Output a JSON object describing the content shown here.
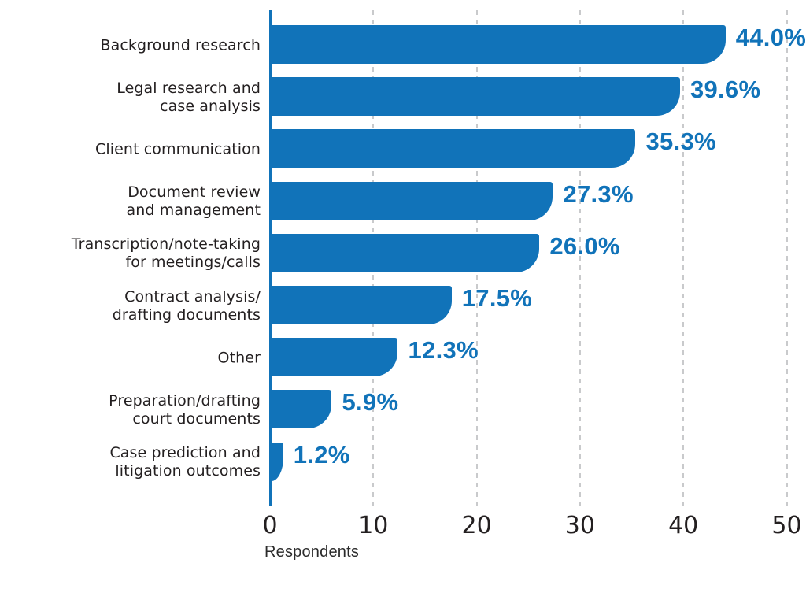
{
  "chart_data": {
    "type": "bar",
    "orientation": "horizontal",
    "title": "",
    "xlabel": "Respondents",
    "ylabel": "",
    "xlim": [
      0,
      50
    ],
    "x_ticks": [
      "0",
      "10",
      "20",
      "30",
      "40",
      "50"
    ],
    "grid": "vertical dashed gridlines at each tick",
    "legend": "none",
    "colors": {
      "bar": "#1173b9",
      "axis_line": "#1173b9",
      "value_label": "#1173b9",
      "category_text": "#231f20",
      "tick_text": "#231f20",
      "gridline": "#c9cacc",
      "background": "#ffffff"
    },
    "categories": [
      "Background research",
      "Legal research and case analysis",
      "Client communication",
      "Document review and management",
      "Transcription/note-taking for meetings/calls",
      "Contract analysis/drafting documents",
      "Other",
      "Preparation/drafting court documents",
      "Case prediction and litigation outcomes"
    ],
    "category_lines": [
      [
        "Background research"
      ],
      [
        "Legal research and",
        "case analysis"
      ],
      [
        "Client communication"
      ],
      [
        "Document review",
        "and management"
      ],
      [
        "Transcription/note-taking",
        "for meetings/calls"
      ],
      [
        "Contract analysis/",
        "drafting documents"
      ],
      [
        "Other"
      ],
      [
        "Preparation/drafting",
        "court documents"
      ],
      [
        "Case prediction and",
        "litigation outcomes"
      ]
    ],
    "values": [
      44.0,
      39.6,
      35.3,
      27.3,
      26.0,
      17.5,
      12.3,
      5.9,
      1.2
    ],
    "value_labels": [
      "44.0%",
      "39.6%",
      "35.3%",
      "27.3%",
      "26.0%",
      "17.5%",
      "12.3%",
      "5.9%",
      "1.2%"
    ]
  }
}
